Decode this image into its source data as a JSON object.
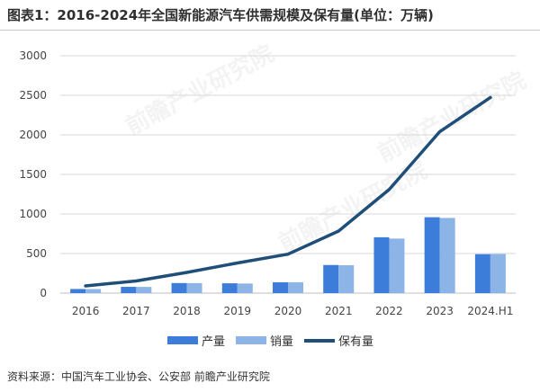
{
  "title": "图表1：2016-2024年全国新能源汽车供需规模及保有量(单位：万辆)",
  "source": "资料来源：中国汽车工业协会、公安部 前瞻产业研究院",
  "watermark": "前瞻产业研究院",
  "colors": {
    "production": "#3b7dd8",
    "sales": "#8db4e6",
    "stock": "#1f4e79",
    "grid": "#d9d9d9",
    "axis": "#bfbfbf"
  },
  "chart_data": {
    "type": "bar",
    "title": "2016-2024年全国新能源汽车供需规模及保有量(单位：万辆)",
    "categories": [
      "2016",
      "2017",
      "2018",
      "2019",
      "2020",
      "2021",
      "2022",
      "2023",
      "2024.H1"
    ],
    "ylim": [
      0,
      3000
    ],
    "yticks": [
      "3000",
      "2500",
      "2000",
      "1500",
      "1000",
      "500",
      "0"
    ],
    "ytick_values": [
      3000,
      2500,
      2000,
      1500,
      1000,
      500,
      0
    ],
    "series": [
      {
        "name": "产量",
        "type": "bar",
        "values": [
          52,
          79,
          127,
          124,
          137,
          355,
          706,
          959,
          492
        ]
      },
      {
        "name": "销量",
        "type": "bar",
        "values": [
          51,
          78,
          126,
          121,
          137,
          352,
          689,
          950,
          494
        ]
      },
      {
        "name": "保有量",
        "type": "line",
        "values": [
          91,
          153,
          261,
          381,
          492,
          784,
          1310,
          2041,
          2472
        ]
      }
    ],
    "legend": [
      "产量",
      "销量",
      "保有量"
    ],
    "legend_position": "bottom"
  }
}
